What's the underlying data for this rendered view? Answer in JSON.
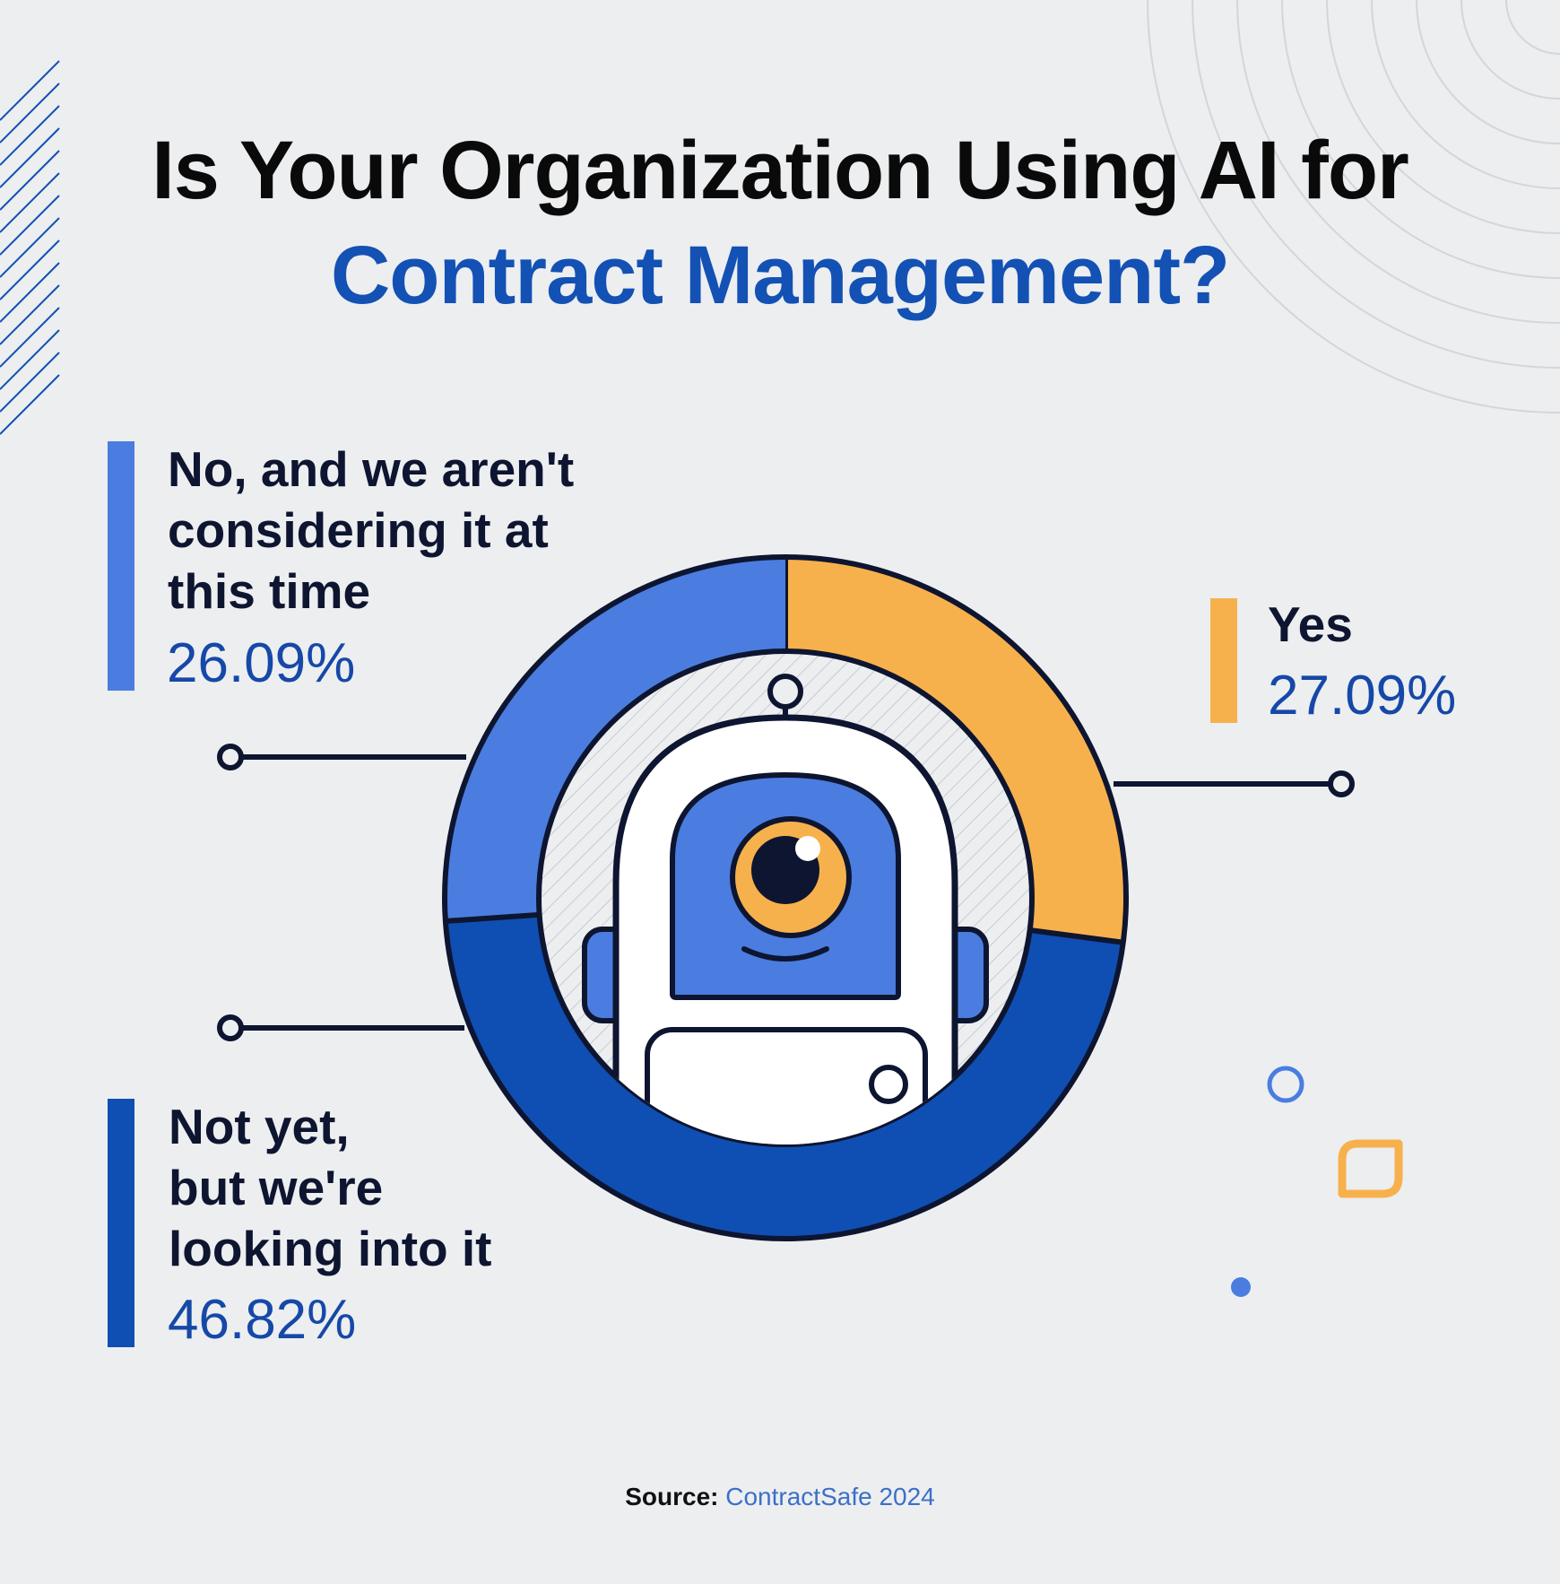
{
  "title": {
    "line1": "Is Your Organization Using AI for",
    "line2": "Contract Management?"
  },
  "chart_data": {
    "type": "pie",
    "slices": [
      {
        "label": "Yes",
        "value": 27.09,
        "display": "27.09%",
        "color": "#f7b14c"
      },
      {
        "label": "Not yet, but we're looking into it",
        "value": 46.82,
        "display": "46.82%",
        "color": "#0f4fb3"
      },
      {
        "label": "No, and we aren't considering it at this time",
        "value": 26.09,
        "display": "26.09%",
        "color": "#4a7ddf"
      }
    ]
  },
  "legend": {
    "no": {
      "lines": [
        "No, and we aren't",
        "considering it at",
        "this time"
      ],
      "value": "26.09%"
    },
    "yes": {
      "lines": [
        "Yes"
      ],
      "value": "27.09%"
    },
    "not_yet": {
      "lines": [
        "Not yet,",
        "but we're",
        "looking into it"
      ],
      "value": "46.82%"
    }
  },
  "source": {
    "label": "Source:",
    "value": "ContractSafe 2024"
  },
  "colors": {
    "background": "#eceef0",
    "yes": "#f7b14c",
    "not_yet": "#0f4fb3",
    "no": "#4a7ddf",
    "outline": "#0e1530",
    "title_accent": "#1351b4"
  },
  "icons": [
    "robot-icon",
    "diagonal-lines-decoration",
    "concentric-arcs-decoration",
    "circle-outline-decoration",
    "rounded-square-decoration",
    "dot-decoration"
  ]
}
